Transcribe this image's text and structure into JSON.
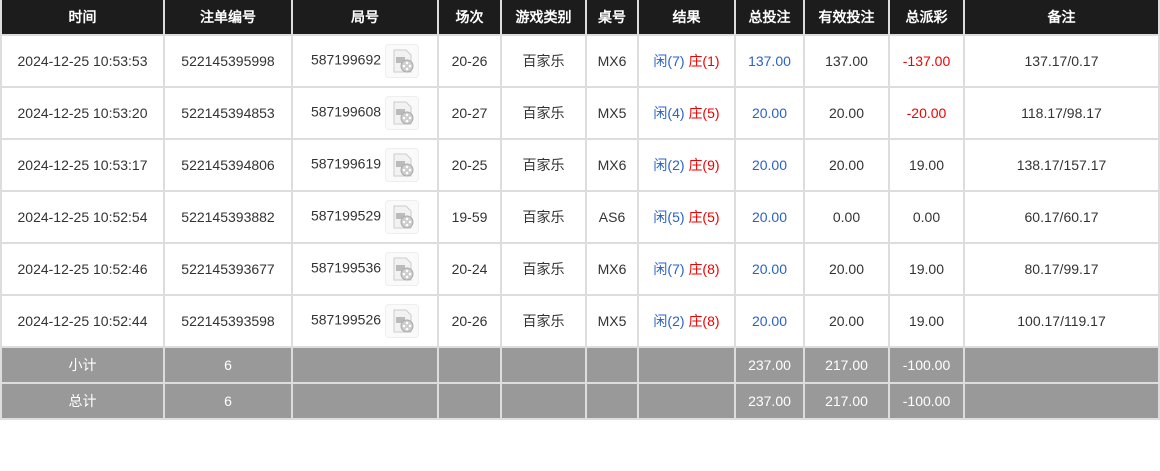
{
  "columns": [
    "时间",
    "注单编号",
    "局号",
    "场次",
    "游戏类别",
    "桌号",
    "结果",
    "总投注",
    "有效投注",
    "总派彩",
    "备注"
  ],
  "rows": [
    {
      "time": "2024-12-25 10:53:53",
      "order": "522145395998",
      "round": "587199692",
      "session": "20-26",
      "game": "百家乐",
      "table": "MX6",
      "player": "闲(7)",
      "banker": "庄(1)",
      "bet": "137.00",
      "valid": "137.00",
      "payout": "-137.00",
      "payout_neg": true,
      "note": "137.17/0.17"
    },
    {
      "time": "2024-12-25 10:53:20",
      "order": "522145394853",
      "round": "587199608",
      "session": "20-27",
      "game": "百家乐",
      "table": "MX5",
      "player": "闲(4)",
      "banker": "庄(5)",
      "bet": "20.00",
      "valid": "20.00",
      "payout": "-20.00",
      "payout_neg": true,
      "note": "118.17/98.17"
    },
    {
      "time": "2024-12-25 10:53:17",
      "order": "522145394806",
      "round": "587199619",
      "session": "20-25",
      "game": "百家乐",
      "table": "MX6",
      "player": "闲(2)",
      "banker": "庄(9)",
      "bet": "20.00",
      "valid": "20.00",
      "payout": "19.00",
      "payout_neg": false,
      "note": "138.17/157.17"
    },
    {
      "time": "2024-12-25 10:52:54",
      "order": "522145393882",
      "round": "587199529",
      "session": "19-59",
      "game": "百家乐",
      "table": "AS6",
      "player": "闲(5)",
      "banker": "庄(5)",
      "bet": "20.00",
      "valid": "0.00",
      "payout": "0.00",
      "payout_neg": false,
      "note": "60.17/60.17"
    },
    {
      "time": "2024-12-25 10:52:46",
      "order": "522145393677",
      "round": "587199536",
      "session": "20-24",
      "game": "百家乐",
      "table": "MX6",
      "player": "闲(7)",
      "banker": "庄(8)",
      "bet": "20.00",
      "valid": "20.00",
      "payout": "19.00",
      "payout_neg": false,
      "note": "80.17/99.17"
    },
    {
      "time": "2024-12-25 10:52:44",
      "order": "522145393598",
      "round": "587199526",
      "session": "20-26",
      "game": "百家乐",
      "table": "MX5",
      "player": "闲(2)",
      "banker": "庄(8)",
      "bet": "20.00",
      "valid": "20.00",
      "payout": "19.00",
      "payout_neg": false,
      "note": "100.17/119.17"
    }
  ],
  "summary": [
    {
      "label": "小计",
      "count": "6",
      "bet": "237.00",
      "valid": "217.00",
      "payout": "-100.00"
    },
    {
      "label": "总计",
      "count": "6",
      "bet": "237.00",
      "valid": "217.00",
      "payout": "-100.00"
    }
  ],
  "icons": {
    "replay": "video-replay-icon"
  },
  "colors": {
    "header": "#1c1c1c",
    "player": "#2a62c9",
    "banker": "#e00",
    "summary": "#999"
  }
}
